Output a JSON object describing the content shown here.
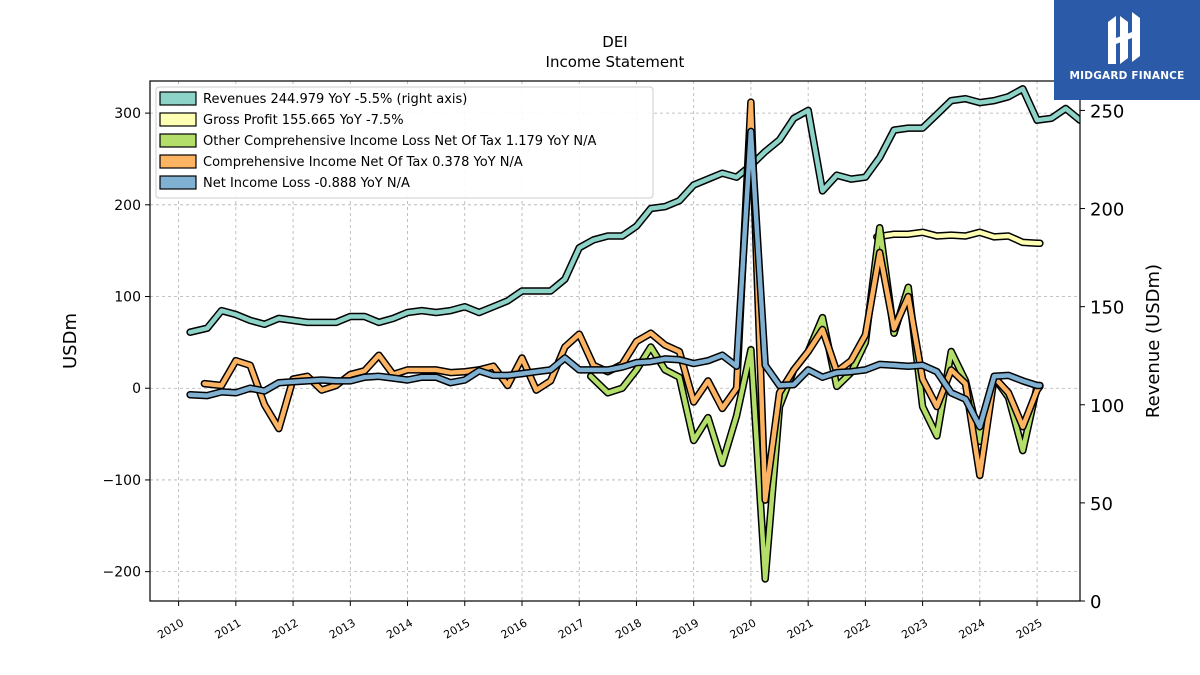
{
  "brand": {
    "name": "MIDGARD FINANCE",
    "bg_color": "#2a5aa8"
  },
  "chart_data": {
    "type": "line",
    "title": "DEI",
    "subtitle": "Income Statement",
    "ylabel": "USDm",
    "ylabel_right": "Revenue (USDm)",
    "ylim": [
      -232,
      335
    ],
    "ylim_right": [
      0,
      265
    ],
    "yticks": [
      -200,
      -100,
      0,
      100,
      200,
      300
    ],
    "yticks_right": [
      0,
      50,
      100,
      150,
      200,
      250
    ],
    "xlim": [
      2009.5,
      2025.75
    ],
    "xticks": [
      2010,
      2011,
      2012,
      2013,
      2014,
      2015,
      2016,
      2017,
      2018,
      2019,
      2020,
      2021,
      2022,
      2023,
      2024,
      2025
    ],
    "grid": true,
    "legend_position": "top-left",
    "series": [
      {
        "name": "Revenues  244.979 YoY -5.5% (right axis)",
        "color": "#8dd3c7",
        "axis": "right",
        "points": [
          [
            2010.2,
            137
          ],
          [
            2010.5,
            139
          ],
          [
            2010.75,
            148
          ],
          [
            2011.0,
            146
          ],
          [
            2011.25,
            143
          ],
          [
            2011.5,
            141
          ],
          [
            2011.75,
            144
          ],
          [
            2012.0,
            143
          ],
          [
            2012.25,
            142
          ],
          [
            2012.5,
            142
          ],
          [
            2012.75,
            142
          ],
          [
            2013.0,
            145
          ],
          [
            2013.25,
            145
          ],
          [
            2013.5,
            142
          ],
          [
            2013.75,
            144
          ],
          [
            2014.0,
            147
          ],
          [
            2014.25,
            148
          ],
          [
            2014.5,
            147
          ],
          [
            2014.75,
            148
          ],
          [
            2015.0,
            150
          ],
          [
            2015.25,
            147
          ],
          [
            2015.5,
            150
          ],
          [
            2015.75,
            153
          ],
          [
            2016.0,
            158
          ],
          [
            2016.25,
            158
          ],
          [
            2016.5,
            158
          ],
          [
            2016.75,
            164
          ],
          [
            2017.0,
            180
          ],
          [
            2017.25,
            184
          ],
          [
            2017.5,
            186
          ],
          [
            2017.75,
            186
          ],
          [
            2018.0,
            191
          ],
          [
            2018.25,
            200
          ],
          [
            2018.5,
            201
          ],
          [
            2018.75,
            204
          ],
          [
            2019.0,
            212
          ],
          [
            2019.25,
            215
          ],
          [
            2019.5,
            218
          ],
          [
            2019.75,
            216
          ],
          [
            2020.0,
            222
          ],
          [
            2020.25,
            229
          ],
          [
            2020.5,
            235
          ],
          [
            2020.75,
            246
          ],
          [
            2021.0,
            250
          ],
          [
            2021.25,
            209
          ],
          [
            2021.5,
            217
          ],
          [
            2021.75,
            215
          ],
          [
            2022.0,
            216
          ],
          [
            2022.25,
            226
          ],
          [
            2022.5,
            240
          ],
          [
            2022.75,
            241
          ],
          [
            2023.0,
            241
          ],
          [
            2023.25,
            248
          ],
          [
            2023.5,
            255
          ],
          [
            2023.75,
            256
          ],
          [
            2024.0,
            254
          ],
          [
            2024.25,
            255
          ],
          [
            2024.5,
            257
          ],
          [
            2024.75,
            261
          ],
          [
            2025.0,
            245
          ],
          [
            2025.25,
            246
          ],
          [
            2025.5,
            251
          ],
          [
            2025.75,
            245
          ]
        ]
      },
      {
        "name": "Gross Profit  155.665 YoY -7.5%",
        "color": "#ffffb3",
        "axis": "left",
        "points": [
          [
            2022.2,
            165
          ],
          [
            2022.5,
            168
          ],
          [
            2022.75,
            168
          ],
          [
            2023.0,
            170
          ],
          [
            2023.25,
            166
          ],
          [
            2023.5,
            167
          ],
          [
            2023.75,
            166
          ],
          [
            2024.0,
            170
          ],
          [
            2024.25,
            165
          ],
          [
            2024.5,
            166
          ],
          [
            2024.75,
            159
          ],
          [
            2025.0,
            158
          ],
          [
            2025.05,
            158
          ]
        ]
      },
      {
        "name": "Other Comprehensive Income Loss Net Of Tax  1.179 YoY N/A",
        "color": "#b3de69",
        "axis": "left",
        "points": [
          [
            2017.2,
            13
          ],
          [
            2017.5,
            -5
          ],
          [
            2017.75,
            0
          ],
          [
            2018.0,
            20
          ],
          [
            2018.25,
            45
          ],
          [
            2018.5,
            20
          ],
          [
            2018.75,
            12
          ],
          [
            2019.0,
            -57
          ],
          [
            2019.25,
            -32
          ],
          [
            2019.5,
            -82
          ],
          [
            2019.75,
            -30
          ],
          [
            2020.0,
            42
          ],
          [
            2020.25,
            -208
          ],
          [
            2020.5,
            -20
          ],
          [
            2020.75,
            20
          ],
          [
            2021.0,
            40
          ],
          [
            2021.25,
            77
          ],
          [
            2021.5,
            2
          ],
          [
            2021.75,
            17
          ],
          [
            2022.0,
            50
          ],
          [
            2022.25,
            175
          ],
          [
            2022.5,
            60
          ],
          [
            2022.75,
            110
          ],
          [
            2023.0,
            -20
          ],
          [
            2023.25,
            -52
          ],
          [
            2023.5,
            40
          ],
          [
            2023.75,
            8
          ],
          [
            2024.0,
            -58
          ],
          [
            2024.25,
            12
          ],
          [
            2024.5,
            -10
          ],
          [
            2024.75,
            -68
          ],
          [
            2025.0,
            2
          ],
          [
            2025.05,
            3
          ]
        ]
      },
      {
        "name": "Comprehensive Income Net Of Tax  0.378 YoY N/A",
        "color": "#fdb462",
        "axis": "left",
        "points": [
          [
            2010.45,
            5
          ],
          [
            2010.75,
            3
          ],
          [
            2011.0,
            30
          ],
          [
            2011.25,
            25
          ],
          [
            2011.5,
            -18
          ],
          [
            2011.75,
            -44
          ],
          [
            2012.0,
            10
          ],
          [
            2012.25,
            13
          ],
          [
            2012.5,
            -2
          ],
          [
            2012.75,
            3
          ],
          [
            2013.0,
            15
          ],
          [
            2013.25,
            19
          ],
          [
            2013.5,
            36
          ],
          [
            2013.75,
            15
          ],
          [
            2014.0,
            20
          ],
          [
            2014.25,
            20
          ],
          [
            2014.5,
            20
          ],
          [
            2014.75,
            17
          ],
          [
            2015.0,
            18
          ],
          [
            2015.25,
            20
          ],
          [
            2015.5,
            24
          ],
          [
            2015.75,
            3
          ],
          [
            2016.0,
            33
          ],
          [
            2016.25,
            -2
          ],
          [
            2016.5,
            8
          ],
          [
            2016.75,
            45
          ],
          [
            2017.0,
            59
          ],
          [
            2017.25,
            25
          ],
          [
            2017.5,
            18
          ],
          [
            2017.75,
            26
          ],
          [
            2018.0,
            51
          ],
          [
            2018.25,
            60
          ],
          [
            2018.5,
            47
          ],
          [
            2018.75,
            40
          ],
          [
            2019.0,
            -15
          ],
          [
            2019.25,
            8
          ],
          [
            2019.5,
            -22
          ],
          [
            2019.75,
            0
          ],
          [
            2020.0,
            312
          ],
          [
            2020.25,
            -122
          ],
          [
            2020.5,
            -5
          ],
          [
            2020.75,
            20
          ],
          [
            2021.0,
            40
          ],
          [
            2021.25,
            64
          ],
          [
            2021.5,
            18
          ],
          [
            2021.75,
            30
          ],
          [
            2022.0,
            58
          ],
          [
            2022.25,
            148
          ],
          [
            2022.5,
            65
          ],
          [
            2022.75,
            100
          ],
          [
            2023.0,
            10
          ],
          [
            2023.25,
            -20
          ],
          [
            2023.5,
            20
          ],
          [
            2023.75,
            5
          ],
          [
            2024.0,
            -95
          ],
          [
            2024.25,
            12
          ],
          [
            2024.5,
            -5
          ],
          [
            2024.75,
            -42
          ],
          [
            2025.0,
            -2
          ],
          [
            2025.05,
            2
          ]
        ]
      },
      {
        "name": "Net Income Loss  -0.888 YoY N/A",
        "color": "#80b1d3",
        "axis": "left",
        "points": [
          [
            2010.2,
            -7
          ],
          [
            2010.5,
            -8
          ],
          [
            2010.75,
            -4
          ],
          [
            2011.0,
            -5
          ],
          [
            2011.25,
            0
          ],
          [
            2011.5,
            -3
          ],
          [
            2011.75,
            6
          ],
          [
            2012.0,
            7
          ],
          [
            2012.25,
            8
          ],
          [
            2012.5,
            9
          ],
          [
            2012.75,
            8
          ],
          [
            2013.0,
            8
          ],
          [
            2013.25,
            12
          ],
          [
            2013.5,
            13
          ],
          [
            2013.75,
            11
          ],
          [
            2014.0,
            9
          ],
          [
            2014.25,
            12
          ],
          [
            2014.5,
            12
          ],
          [
            2014.75,
            6
          ],
          [
            2015.0,
            9
          ],
          [
            2015.25,
            19
          ],
          [
            2015.5,
            14
          ],
          [
            2015.75,
            14
          ],
          [
            2016.0,
            16
          ],
          [
            2016.25,
            18
          ],
          [
            2016.5,
            20
          ],
          [
            2016.75,
            33
          ],
          [
            2017.0,
            20
          ],
          [
            2017.25,
            20
          ],
          [
            2017.5,
            20
          ],
          [
            2017.75,
            23
          ],
          [
            2018.0,
            28
          ],
          [
            2018.25,
            29
          ],
          [
            2018.5,
            32
          ],
          [
            2018.75,
            31
          ],
          [
            2019.0,
            27
          ],
          [
            2019.25,
            30
          ],
          [
            2019.5,
            36
          ],
          [
            2019.75,
            24
          ],
          [
            2020.0,
            280
          ],
          [
            2020.25,
            25
          ],
          [
            2020.5,
            3
          ],
          [
            2020.75,
            4
          ],
          [
            2021.0,
            20
          ],
          [
            2021.25,
            12
          ],
          [
            2021.5,
            17
          ],
          [
            2021.75,
            18
          ],
          [
            2022.0,
            20
          ],
          [
            2022.25,
            26
          ],
          [
            2022.5,
            25
          ],
          [
            2022.75,
            24
          ],
          [
            2023.0,
            25
          ],
          [
            2023.25,
            18
          ],
          [
            2023.5,
            -5
          ],
          [
            2023.75,
            -12
          ],
          [
            2024.0,
            -42
          ],
          [
            2024.25,
            13
          ],
          [
            2024.5,
            14
          ],
          [
            2024.75,
            8
          ],
          [
            2025.0,
            3
          ],
          [
            2025.05,
            3
          ]
        ]
      }
    ]
  }
}
